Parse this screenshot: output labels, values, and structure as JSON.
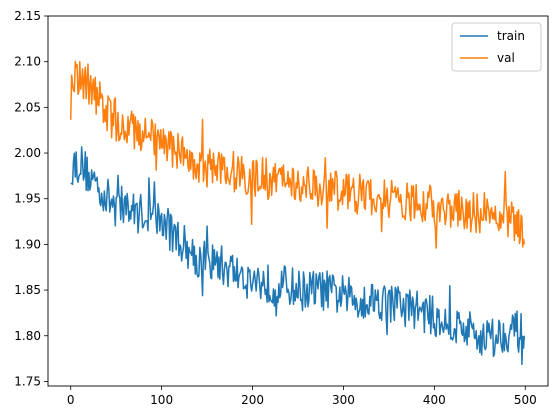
{
  "chart_data": {
    "type": "line",
    "title": "",
    "xlabel": "",
    "ylabel": "",
    "xlim": [
      -25,
      525
    ],
    "ylim": [
      1.745,
      2.15
    ],
    "xticks": [
      0,
      100,
      200,
      300,
      400,
      500
    ],
    "xtick_labels": [
      "0",
      "100",
      "200",
      "300",
      "400",
      "500"
    ],
    "yticks": [
      1.75,
      1.8,
      1.85,
      1.9,
      1.95,
      2.0,
      2.05,
      2.1,
      2.15
    ],
    "ytick_labels": [
      "1.75",
      "1.80",
      "1.85",
      "1.90",
      "1.95",
      "2.00",
      "2.05",
      "2.10",
      "2.15"
    ],
    "grid": false,
    "legend_position": "top-right",
    "series": [
      {
        "name": "train",
        "color": "#1f77b4",
        "x": [
          0,
          10,
          20,
          30,
          40,
          50,
          60,
          70,
          80,
          90,
          100,
          110,
          120,
          130,
          140,
          150,
          160,
          170,
          180,
          190,
          200,
          210,
          220,
          230,
          240,
          250,
          260,
          270,
          280,
          290,
          300,
          310,
          320,
          330,
          340,
          350,
          360,
          370,
          380,
          390,
          400,
          410,
          420,
          430,
          440,
          450,
          460,
          470,
          480,
          490,
          499
        ],
        "values": [
          1.985,
          1.99,
          1.975,
          1.965,
          1.95,
          1.945,
          1.94,
          1.935,
          1.935,
          1.93,
          1.925,
          1.915,
          1.905,
          1.895,
          1.885,
          1.88,
          1.88,
          1.875,
          1.87,
          1.865,
          1.86,
          1.86,
          1.855,
          1.855,
          1.855,
          1.85,
          1.85,
          1.85,
          1.85,
          1.845,
          1.845,
          1.84,
          1.84,
          1.84,
          1.84,
          1.835,
          1.835,
          1.83,
          1.83,
          1.825,
          1.82,
          1.815,
          1.81,
          1.81,
          1.805,
          1.8,
          1.8,
          1.8,
          1.805,
          1.805,
          1.8
        ]
      },
      {
        "name": "val",
        "color": "#ff7f0e",
        "x": [
          0,
          10,
          20,
          30,
          40,
          50,
          60,
          70,
          80,
          90,
          100,
          110,
          120,
          130,
          140,
          150,
          160,
          170,
          180,
          190,
          200,
          210,
          220,
          230,
          240,
          250,
          260,
          270,
          280,
          290,
          300,
          310,
          320,
          330,
          340,
          350,
          360,
          370,
          380,
          390,
          400,
          410,
          420,
          430,
          440,
          450,
          460,
          470,
          480,
          490,
          499
        ],
        "values": [
          2.09,
          2.085,
          2.075,
          2.06,
          2.045,
          2.035,
          2.03,
          2.025,
          2.02,
          2.015,
          2.01,
          2.005,
          2.0,
          1.995,
          1.99,
          1.985,
          1.985,
          1.98,
          1.98,
          1.975,
          1.975,
          1.975,
          1.97,
          1.97,
          1.97,
          1.965,
          1.965,
          1.965,
          1.96,
          1.96,
          1.955,
          1.955,
          1.955,
          1.95,
          1.95,
          1.95,
          1.945,
          1.945,
          1.945,
          1.945,
          1.94,
          1.94,
          1.94,
          1.94,
          1.935,
          1.935,
          1.935,
          1.93,
          1.93,
          1.925,
          1.9
        ]
      }
    ]
  }
}
